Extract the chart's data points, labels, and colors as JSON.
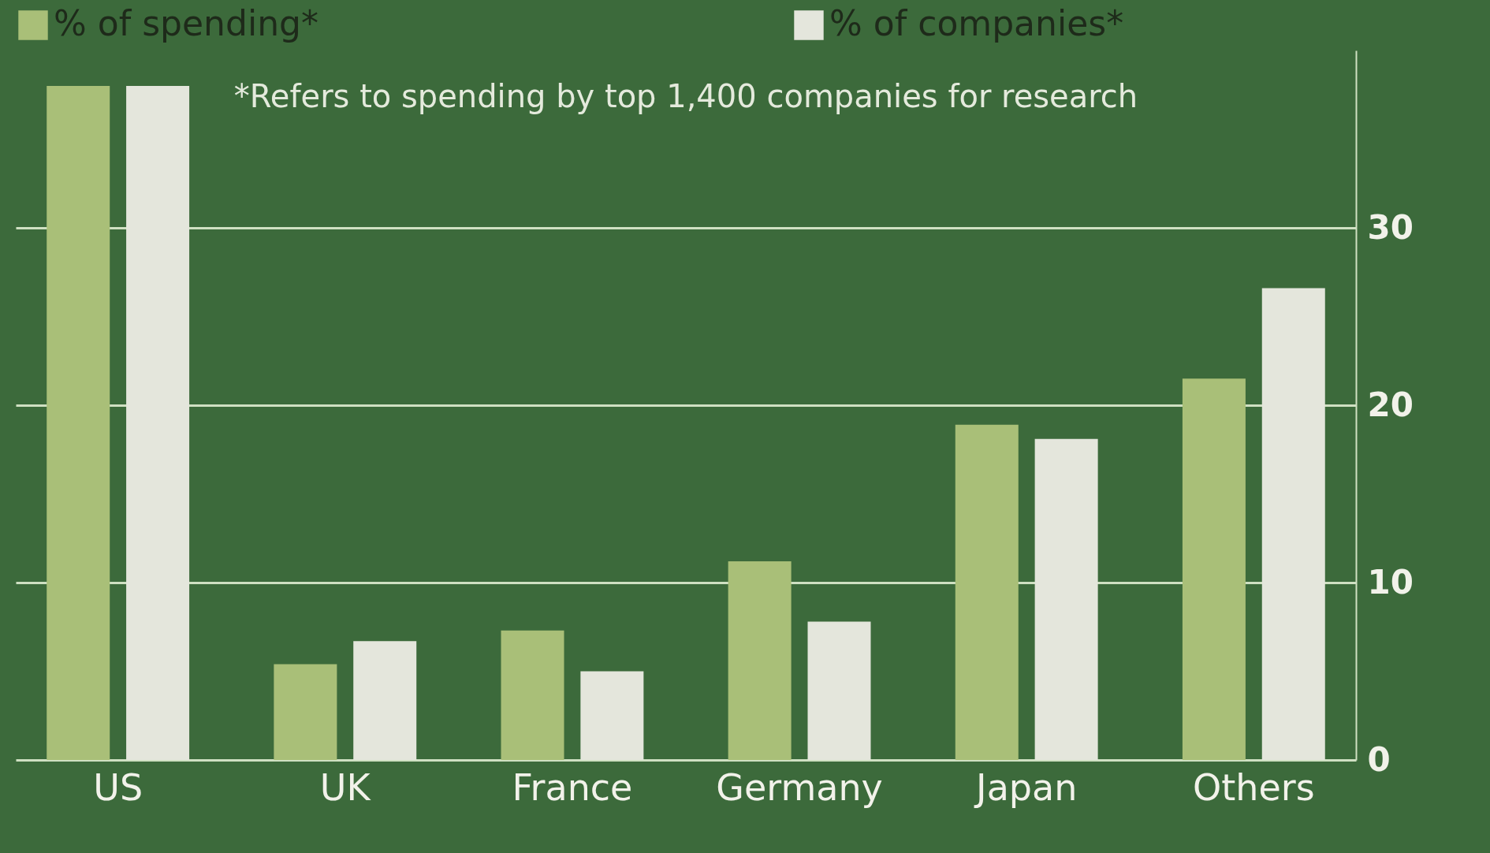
{
  "chart_data": {
    "type": "bar",
    "categories": [
      "US",
      "UK",
      "France",
      "Germany",
      "Japan",
      "Others"
    ],
    "series": [
      {
        "name": "% of spending*",
        "color": "#a9bf78",
        "values": [
          38,
          5.4,
          7.3,
          11.2,
          18.9,
          21.5
        ]
      },
      {
        "name": "% of companies*",
        "color": "#e4e6dc",
        "values": [
          38,
          6.7,
          5,
          7.8,
          18.1,
          26.6
        ]
      }
    ],
    "ylim": [
      0,
      40
    ],
    "yticks": [
      0,
      10,
      20,
      30
    ],
    "grid": "y",
    "legend": "top",
    "annotations": [
      "*Refers to spending by top 1,400 companies for research"
    ]
  }
}
